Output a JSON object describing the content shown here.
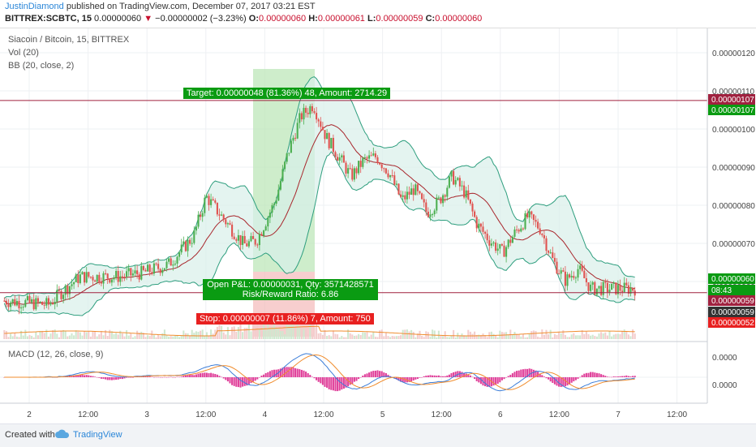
{
  "header": {
    "author": "JustinDiamond",
    "published": "published on TradingView.com, December 07, 2017 03:21 EST",
    "symbol": "BITTREX:SCBTC, 15",
    "last": "0.00000060",
    "change_arrow": "▼",
    "change": "−0.00000002 (−3.23%)",
    "o_label": "O:",
    "o_value": "0.00000060",
    "h_label": "H:",
    "h_value": "0.00000061",
    "l_label": "L:",
    "l_value": "0.00000059",
    "c_label": "C:",
    "c_value": "0.00000060"
  },
  "legend": {
    "title": "Siacoin / Bitcoin, 15, BITTREX",
    "vol": "Vol (20)",
    "bb": "BB (20, close, 2)",
    "macd": "MACD (12, 26, close, 9)"
  },
  "annotations": {
    "target": "Target: 0.00000048 (81.36%) 48, Amount: 2714.29",
    "pnl_line1": "Open P&L: 0.00000031, Qty: 3571428571",
    "pnl_line2": "Risk/Reward Ratio: 6.86",
    "stop": "Stop: 0.00000007 (11.86%) 7, Amount: 750"
  },
  "footer": {
    "created": "Created with",
    "brand": "TradingView"
  },
  "colors": {
    "up": "#4caf50",
    "down": "#e0524f",
    "bb_band": "#2e9e7e",
    "bb_basis": "#a8262c",
    "macd_line": "#3b7dd8",
    "signal_line": "#f08c2c",
    "hist": "#e0409a",
    "target_bg": "#0a9b12",
    "stop_bg": "#e82020",
    "hline": "#a0213f"
  },
  "chart_data": {
    "type": "candlestick",
    "price_axis_ticks": [
      "0.00000120",
      "0.00000110",
      "0.00000100",
      "0.00000090",
      "0.00000080",
      "0.00000070",
      "0.00000060"
    ],
    "price_badges": [
      {
        "label": "0.00000107",
        "color": "#a0213f"
      },
      {
        "label": "0.00000107",
        "color": "#0a9b12"
      },
      {
        "label": "0.00000060",
        "color": "#0a9b12"
      },
      {
        "label": "08:43",
        "color": "#0a9b12"
      },
      {
        "label": "0.00000059",
        "color": "#a0213f"
      },
      {
        "label": "0.00000059",
        "color": "#333333"
      },
      {
        "label": "0.00000052",
        "color": "#e82020"
      }
    ],
    "macd_axis_ticks": [
      "0.0000",
      "0.0000"
    ],
    "time_labels": [
      "2",
      "12:00",
      "3",
      "12:00",
      "4",
      "12:00",
      "5",
      "12:00",
      "6",
      "12:00",
      "7",
      "12:00"
    ],
    "ylim": [
      4.7e-07,
      1.25e-06
    ],
    "target_price": 1.07e-06,
    "entry_price": 5.9e-07,
    "path_points": [
      [
        0,
        5.7e-07
      ],
      [
        0.07,
        5.6e-07
      ],
      [
        0.09,
        5.9e-07
      ],
      [
        0.12,
        6.3e-07
      ],
      [
        0.18,
        6.3e-07
      ],
      [
        0.22,
        6.4e-07
      ],
      [
        0.26,
        6.6e-07
      ],
      [
        0.3,
        7.3e-07
      ],
      [
        0.32,
        8.3e-07
      ],
      [
        0.36,
        7.5e-07
      ],
      [
        0.38,
        7.1e-07
      ],
      [
        0.4,
        7.2e-07
      ],
      [
        0.43,
        8.2e-07
      ],
      [
        0.45,
        9.4e-07
      ],
      [
        0.47,
        1.03e-06
      ],
      [
        0.49,
        1.06e-06
      ],
      [
        0.51,
        9.8e-07
      ],
      [
        0.53,
        9.3e-07
      ],
      [
        0.55,
        8.8e-07
      ],
      [
        0.57,
        9.2e-07
      ],
      [
        0.59,
        9.3e-07
      ],
      [
        0.61,
        8.9e-07
      ],
      [
        0.63,
        8.2e-07
      ],
      [
        0.65,
        8.5e-07
      ],
      [
        0.67,
        7.9e-07
      ],
      [
        0.69,
        8.2e-07
      ],
      [
        0.71,
        8.8e-07
      ],
      [
        0.73,
        8.4e-07
      ],
      [
        0.75,
        7.6e-07
      ],
      [
        0.77,
        7.2e-07
      ],
      [
        0.79,
        6.9e-07
      ],
      [
        0.81,
        7.4e-07
      ],
      [
        0.83,
        7.8e-07
      ],
      [
        0.85,
        7.5e-07
      ],
      [
        0.87,
        6.7e-07
      ],
      [
        0.89,
        6.2e-07
      ],
      [
        0.91,
        6.5e-07
      ],
      [
        0.93,
        6e-07
      ]
    ]
  }
}
